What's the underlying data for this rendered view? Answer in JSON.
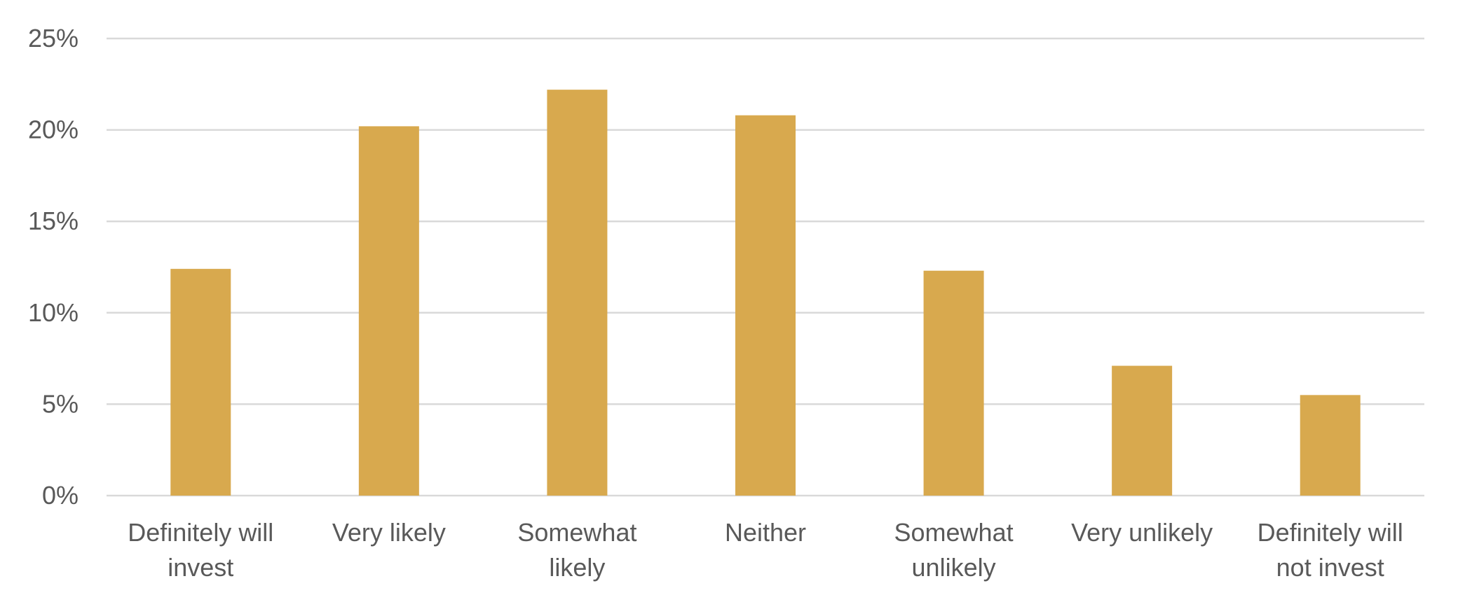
{
  "chart_data": {
    "type": "bar",
    "title": "",
    "xlabel": "",
    "ylabel": "",
    "categories": [
      [
        "Definitely will",
        "invest"
      ],
      [
        "Very likely"
      ],
      [
        "Somewhat",
        "likely"
      ],
      [
        "Neither"
      ],
      [
        "Somewhat",
        "unlikely"
      ],
      [
        "Very unlikely"
      ],
      [
        "Definitely will",
        "not invest"
      ]
    ],
    "values": [
      12.4,
      20.2,
      22.2,
      20.8,
      12.3,
      7.1,
      5.5
    ],
    "ylim": [
      0,
      25
    ],
    "yticks": [
      {
        "value": 0,
        "label": "0%"
      },
      {
        "value": 5,
        "label": "5%"
      },
      {
        "value": 10,
        "label": "10%"
      },
      {
        "value": 15,
        "label": "15%"
      },
      {
        "value": 20,
        "label": "20%"
      },
      {
        "value": 25,
        "label": "25%"
      }
    ],
    "grid": true,
    "legend": "none",
    "bar_color": "#D8A94E",
    "grid_color": "#D9D9D9",
    "text_color": "#595959"
  }
}
